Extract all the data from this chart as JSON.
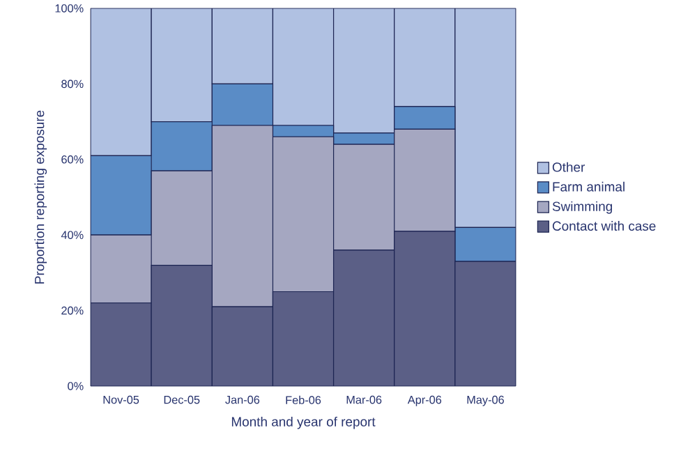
{
  "chart_data": {
    "type": "bar",
    "stacked": true,
    "xlabel": "Month and year of report",
    "ylabel": "Proportion reporting exposure",
    "categories": [
      "Nov-05",
      "Dec-05",
      "Jan-06",
      "Feb-06",
      "Mar-06",
      "Apr-06",
      "May-06"
    ],
    "series": [
      {
        "name": "Contact with case",
        "color": "#5b5f86",
        "values": [
          22,
          32,
          21,
          25,
          36,
          41,
          33
        ]
      },
      {
        "name": "Swimming",
        "color": "#a5a7c1",
        "values": [
          18,
          25,
          48,
          41,
          28,
          27,
          0
        ]
      },
      {
        "name": "Farm animal",
        "color": "#5a8cc6",
        "values": [
          21,
          13,
          11,
          3,
          3,
          6,
          9
        ]
      },
      {
        "name": "Other",
        "color": "#b0c1e2",
        "values": [
          39,
          30,
          20,
          31,
          33,
          26,
          58
        ]
      }
    ],
    "ylim": [
      0,
      100
    ],
    "yticks": [
      {
        "value": 0,
        "label": "0%"
      },
      {
        "value": 20,
        "label": "20%"
      },
      {
        "value": 40,
        "label": "40%"
      },
      {
        "value": 60,
        "label": "60%"
      },
      {
        "value": 80,
        "label": "80%"
      },
      {
        "value": 100,
        "label": "100%"
      }
    ],
    "grid": false,
    "legend": "right"
  }
}
